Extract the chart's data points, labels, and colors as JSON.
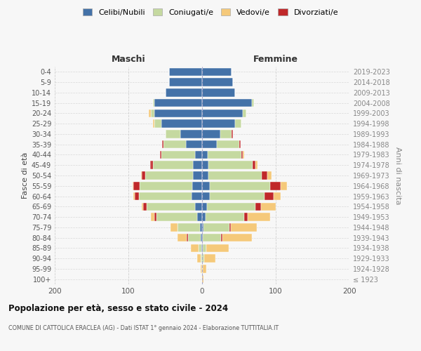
{
  "age_groups": [
    "100+",
    "95-99",
    "90-94",
    "85-89",
    "80-84",
    "75-79",
    "70-74",
    "65-69",
    "60-64",
    "55-59",
    "50-54",
    "45-49",
    "40-44",
    "35-39",
    "30-34",
    "25-29",
    "20-24",
    "15-19",
    "10-14",
    "5-9",
    "0-4"
  ],
  "birth_years": [
    "≤ 1923",
    "1924-1928",
    "1929-1933",
    "1934-1938",
    "1939-1943",
    "1944-1948",
    "1949-1953",
    "1954-1958",
    "1959-1963",
    "1964-1968",
    "1969-1973",
    "1974-1978",
    "1979-1983",
    "1984-1988",
    "1989-1993",
    "1994-1998",
    "1999-2003",
    "2004-2008",
    "2009-2013",
    "2014-2018",
    "2019-2023"
  ],
  "colors": {
    "celibi": "#4472a8",
    "coniugati": "#c5d9a0",
    "vedovi": "#f5c97a",
    "divorziati": "#c0282a"
  },
  "maschi": {
    "celibi": [
      0,
      0,
      0,
      1,
      2,
      3,
      7,
      10,
      14,
      13,
      12,
      12,
      10,
      22,
      30,
      55,
      65,
      65,
      50,
      45,
      45
    ],
    "coniugati": [
      0,
      0,
      2,
      4,
      17,
      30,
      55,
      65,
      72,
      72,
      65,
      55,
      45,
      30,
      20,
      10,
      5,
      2,
      0,
      0,
      0
    ],
    "vedovi": [
      0,
      2,
      5,
      10,
      12,
      10,
      5,
      2,
      2,
      1,
      1,
      0,
      0,
      0,
      0,
      2,
      2,
      0,
      0,
      0,
      0
    ],
    "divorziati": [
      0,
      0,
      0,
      0,
      2,
      0,
      3,
      5,
      5,
      8,
      5,
      3,
      2,
      2,
      0,
      0,
      0,
      0,
      0,
      0,
      0
    ]
  },
  "femmine": {
    "celibi": [
      0,
      0,
      0,
      1,
      1,
      2,
      5,
      7,
      10,
      10,
      9,
      9,
      8,
      20,
      25,
      45,
      55,
      68,
      45,
      42,
      40
    ],
    "coniugati": [
      0,
      1,
      3,
      5,
      25,
      35,
      52,
      65,
      75,
      82,
      72,
      60,
      45,
      30,
      15,
      8,
      5,
      2,
      0,
      0,
      0
    ],
    "vedovi": [
      2,
      5,
      15,
      30,
      40,
      35,
      30,
      20,
      10,
      8,
      5,
      3,
      2,
      0,
      0,
      0,
      0,
      0,
      0,
      0,
      0
    ],
    "divorziati": [
      0,
      0,
      0,
      0,
      2,
      2,
      5,
      8,
      12,
      15,
      8,
      3,
      2,
      2,
      2,
      0,
      0,
      0,
      0,
      0,
      0
    ]
  },
  "title1": "Popolazione per età, sesso e stato civile - 2024",
  "title2": "COMUNE DI CATTOLICA ERACLEA (AG) - Dati ISTAT 1° gennaio 2024 - Elaborazione TUTTITALIA.IT",
  "ylabel_left": "Fasce di età",
  "ylabel_right": "Anni di nascita",
  "header_left": "Maschi",
  "header_right": "Femmine",
  "legend_labels": [
    "Celibi/Nubili",
    "Coniugati/e",
    "Vedovi/e",
    "Divorziati/e"
  ],
  "xlim": 200,
  "background_color": "#f7f7f7",
  "grid_color": "#cccccc"
}
